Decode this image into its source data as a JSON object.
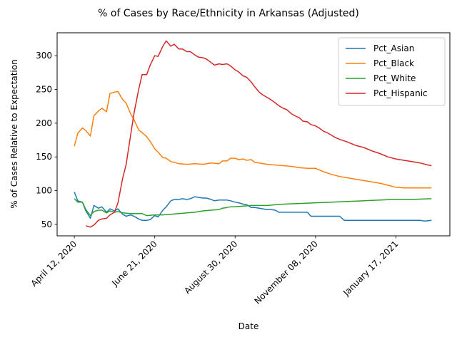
{
  "chart_data": {
    "type": "line",
    "title": "% of Cases by Race/Ethnicity in Arkansas (Adjusted)",
    "xlabel": "Date",
    "ylabel": "% of Cases Relative to Expectation",
    "ylim": [
      33,
      334
    ],
    "xlim": [
      "2020-03-28",
      "2021-03-05"
    ],
    "y_ticks": [
      50,
      100,
      150,
      200,
      250,
      300
    ],
    "x_ticks": [
      {
        "date": "2020-04-12",
        "label": "April 12, 2020"
      },
      {
        "date": "2020-06-21",
        "label": "June 21, 2020"
      },
      {
        "date": "2020-08-30",
        "label": "August 30, 2020"
      },
      {
        "date": "2020-11-08",
        "label": "November 08, 2020"
      },
      {
        "date": "2021-01-17",
        "label": "January 17, 2021"
      }
    ],
    "legend_position": "top-right",
    "grid": false,
    "series": [
      {
        "name": "Pct_Asian",
        "color": "#1f77b4",
        "points": [
          [
            "2020-04-12",
            98
          ],
          [
            "2020-04-15",
            85
          ],
          [
            "2020-04-19",
            83
          ],
          [
            "2020-04-22",
            70
          ],
          [
            "2020-04-26",
            59
          ],
          [
            "2020-04-29",
            78
          ],
          [
            "2020-05-03",
            74
          ],
          [
            "2020-05-06",
            76
          ],
          [
            "2020-05-10",
            68
          ],
          [
            "2020-05-13",
            73
          ],
          [
            "2020-05-17",
            70
          ],
          [
            "2020-05-20",
            73
          ],
          [
            "2020-05-24",
            65
          ],
          [
            "2020-05-27",
            62
          ],
          [
            "2020-05-31",
            64
          ],
          [
            "2020-06-03",
            62
          ],
          [
            "2020-06-07",
            58
          ],
          [
            "2020-06-10",
            56
          ],
          [
            "2020-06-14",
            56
          ],
          [
            "2020-06-17",
            57
          ],
          [
            "2020-06-21",
            63
          ],
          [
            "2020-06-24",
            61
          ],
          [
            "2020-06-28",
            71
          ],
          [
            "2020-07-01",
            76
          ],
          [
            "2020-07-05",
            85
          ],
          [
            "2020-07-08",
            87
          ],
          [
            "2020-07-12",
            87
          ],
          [
            "2020-07-15",
            88
          ],
          [
            "2020-07-19",
            87
          ],
          [
            "2020-07-22",
            88
          ],
          [
            "2020-07-26",
            91
          ],
          [
            "2020-07-29",
            90
          ],
          [
            "2020-08-02",
            89
          ],
          [
            "2020-08-05",
            89
          ],
          [
            "2020-08-09",
            87
          ],
          [
            "2020-08-12",
            85
          ],
          [
            "2020-08-16",
            86
          ],
          [
            "2020-08-19",
            86
          ],
          [
            "2020-08-23",
            86
          ],
          [
            "2020-08-26",
            85
          ],
          [
            "2020-08-30",
            83
          ],
          [
            "2020-09-02",
            82
          ],
          [
            "2020-09-06",
            80
          ],
          [
            "2020-09-09",
            79
          ],
          [
            "2020-09-13",
            75
          ],
          [
            "2020-09-16",
            75
          ],
          [
            "2020-09-20",
            74
          ],
          [
            "2020-09-23",
            73
          ],
          [
            "2020-09-27",
            72
          ],
          [
            "2020-09-30",
            72
          ],
          [
            "2020-10-04",
            71
          ],
          [
            "2020-10-07",
            68
          ],
          [
            "2020-10-11",
            68
          ],
          [
            "2020-10-18",
            68
          ],
          [
            "2020-10-25",
            68
          ],
          [
            "2020-11-01",
            68
          ],
          [
            "2020-11-04",
            62
          ],
          [
            "2020-11-08",
            62
          ],
          [
            "2020-11-15",
            62
          ],
          [
            "2020-11-22",
            62
          ],
          [
            "2020-11-29",
            62
          ],
          [
            "2020-12-03",
            56
          ],
          [
            "2020-12-10",
            56
          ],
          [
            "2020-12-20",
            56
          ],
          [
            "2020-12-31",
            56
          ],
          [
            "2021-01-10",
            56
          ],
          [
            "2021-01-20",
            56
          ],
          [
            "2021-01-31",
            56
          ],
          [
            "2021-02-07",
            56
          ],
          [
            "2021-02-11",
            55
          ],
          [
            "2021-02-17",
            56
          ]
        ]
      },
      {
        "name": "Pct_Black",
        "color": "#ff7f0e",
        "points": [
          [
            "2020-04-12",
            166
          ],
          [
            "2020-04-15",
            185
          ],
          [
            "2020-04-19",
            193
          ],
          [
            "2020-04-22",
            189
          ],
          [
            "2020-04-26",
            181
          ],
          [
            "2020-04-29",
            211
          ],
          [
            "2020-05-03",
            218
          ],
          [
            "2020-05-06",
            222
          ],
          [
            "2020-05-10",
            217
          ],
          [
            "2020-05-13",
            244
          ],
          [
            "2020-05-17",
            246
          ],
          [
            "2020-05-20",
            247
          ],
          [
            "2020-05-24",
            235
          ],
          [
            "2020-05-27",
            230
          ],
          [
            "2020-05-31",
            214
          ],
          [
            "2020-06-03",
            205
          ],
          [
            "2020-06-07",
            190
          ],
          [
            "2020-06-10",
            186
          ],
          [
            "2020-06-14",
            180
          ],
          [
            "2020-06-17",
            173
          ],
          [
            "2020-06-21",
            162
          ],
          [
            "2020-06-24",
            157
          ],
          [
            "2020-06-28",
            149
          ],
          [
            "2020-07-01",
            148
          ],
          [
            "2020-07-05",
            143
          ],
          [
            "2020-07-08",
            142
          ],
          [
            "2020-07-12",
            140
          ],
          [
            "2020-07-19",
            139
          ],
          [
            "2020-07-26",
            140
          ],
          [
            "2020-08-02",
            139
          ],
          [
            "2020-08-09",
            141
          ],
          [
            "2020-08-16",
            140
          ],
          [
            "2020-08-19",
            144
          ],
          [
            "2020-08-23",
            144
          ],
          [
            "2020-08-26",
            148
          ],
          [
            "2020-08-30",
            148
          ],
          [
            "2020-09-02",
            146
          ],
          [
            "2020-09-06",
            147
          ],
          [
            "2020-09-09",
            145
          ],
          [
            "2020-09-13",
            146
          ],
          [
            "2020-09-16",
            142
          ],
          [
            "2020-09-20",
            141
          ],
          [
            "2020-09-27",
            139
          ],
          [
            "2020-10-04",
            138
          ],
          [
            "2020-10-11",
            137
          ],
          [
            "2020-10-18",
            136
          ],
          [
            "2020-10-25",
            134
          ],
          [
            "2020-11-01",
            133
          ],
          [
            "2020-11-08",
            133
          ],
          [
            "2020-11-15",
            128
          ],
          [
            "2020-11-22",
            124
          ],
          [
            "2020-11-29",
            121
          ],
          [
            "2020-12-06",
            119
          ],
          [
            "2020-12-13",
            117
          ],
          [
            "2020-12-20",
            115
          ],
          [
            "2020-12-27",
            113
          ],
          [
            "2021-01-03",
            111
          ],
          [
            "2021-01-10",
            108
          ],
          [
            "2021-01-17",
            105
          ],
          [
            "2021-01-24",
            104
          ],
          [
            "2021-02-07",
            104
          ],
          [
            "2021-02-17",
            104
          ]
        ]
      },
      {
        "name": "Pct_White",
        "color": "#2ca02c",
        "points": [
          [
            "2020-04-12",
            88
          ],
          [
            "2020-04-15",
            83
          ],
          [
            "2020-04-19",
            83
          ],
          [
            "2020-04-22",
            72
          ],
          [
            "2020-04-26",
            63
          ],
          [
            "2020-04-29",
            69
          ],
          [
            "2020-05-03",
            71
          ],
          [
            "2020-05-06",
            71
          ],
          [
            "2020-05-10",
            67
          ],
          [
            "2020-05-13",
            70
          ],
          [
            "2020-05-17",
            68
          ],
          [
            "2020-05-20",
            69
          ],
          [
            "2020-05-24",
            67
          ],
          [
            "2020-05-31",
            66
          ],
          [
            "2020-06-07",
            66
          ],
          [
            "2020-06-10",
            66
          ],
          [
            "2020-06-14",
            63
          ],
          [
            "2020-06-21",
            64
          ],
          [
            "2020-06-28",
            64
          ],
          [
            "2020-07-05",
            65
          ],
          [
            "2020-07-12",
            66
          ],
          [
            "2020-07-19",
            67
          ],
          [
            "2020-07-26",
            68
          ],
          [
            "2020-08-02",
            70
          ],
          [
            "2020-08-09",
            71
          ],
          [
            "2020-08-16",
            72
          ],
          [
            "2020-08-19",
            74
          ],
          [
            "2020-08-23",
            75
          ],
          [
            "2020-08-26",
            76
          ],
          [
            "2020-08-30",
            76
          ],
          [
            "2020-09-06",
            77
          ],
          [
            "2020-09-13",
            78
          ],
          [
            "2020-09-27",
            78
          ],
          [
            "2020-10-04",
            79
          ],
          [
            "2020-10-11",
            80
          ],
          [
            "2020-10-25",
            81
          ],
          [
            "2020-11-08",
            82
          ],
          [
            "2020-11-22",
            83
          ],
          [
            "2020-12-06",
            84
          ],
          [
            "2020-12-20",
            85
          ],
          [
            "2021-01-03",
            86
          ],
          [
            "2021-01-17",
            87
          ],
          [
            "2021-01-31",
            87
          ],
          [
            "2021-02-17",
            88
          ]
        ]
      },
      {
        "name": "Pct_Hispanic",
        "color": "#d62728",
        "points": [
          [
            "2020-04-22",
            48
          ],
          [
            "2020-04-26",
            46
          ],
          [
            "2020-04-29",
            49
          ],
          [
            "2020-05-03",
            56
          ],
          [
            "2020-05-06",
            58
          ],
          [
            "2020-05-10",
            59
          ],
          [
            "2020-05-13",
            64
          ],
          [
            "2020-05-17",
            68
          ],
          [
            "2020-05-20",
            82
          ],
          [
            "2020-05-24",
            118
          ],
          [
            "2020-05-27",
            138
          ],
          [
            "2020-05-31",
            182
          ],
          [
            "2020-06-03",
            215
          ],
          [
            "2020-06-07",
            250
          ],
          [
            "2020-06-10",
            272
          ],
          [
            "2020-06-14",
            272
          ],
          [
            "2020-06-17",
            286
          ],
          [
            "2020-06-21",
            300
          ],
          [
            "2020-06-24",
            299
          ],
          [
            "2020-06-28",
            314
          ],
          [
            "2020-07-01",
            322
          ],
          [
            "2020-07-05",
            314
          ],
          [
            "2020-07-08",
            317
          ],
          [
            "2020-07-12",
            310
          ],
          [
            "2020-07-15",
            310
          ],
          [
            "2020-07-19",
            306
          ],
          [
            "2020-07-22",
            306
          ],
          [
            "2020-07-26",
            301
          ],
          [
            "2020-07-29",
            298
          ],
          [
            "2020-08-02",
            297
          ],
          [
            "2020-08-05",
            295
          ],
          [
            "2020-08-09",
            290
          ],
          [
            "2020-08-12",
            286
          ],
          [
            "2020-08-16",
            288
          ],
          [
            "2020-08-19",
            287
          ],
          [
            "2020-08-23",
            288
          ],
          [
            "2020-08-26",
            285
          ],
          [
            "2020-08-30",
            279
          ],
          [
            "2020-09-02",
            276
          ],
          [
            "2020-09-06",
            270
          ],
          [
            "2020-09-09",
            268
          ],
          [
            "2020-09-13",
            261
          ],
          [
            "2020-09-16",
            254
          ],
          [
            "2020-09-20",
            246
          ],
          [
            "2020-09-23",
            242
          ],
          [
            "2020-09-27",
            238
          ],
          [
            "2020-09-30",
            235
          ],
          [
            "2020-10-04",
            230
          ],
          [
            "2020-10-07",
            226
          ],
          [
            "2020-10-11",
            222
          ],
          [
            "2020-10-14",
            220
          ],
          [
            "2020-10-18",
            214
          ],
          [
            "2020-10-21",
            211
          ],
          [
            "2020-10-25",
            208
          ],
          [
            "2020-10-28",
            203
          ],
          [
            "2020-11-01",
            202
          ],
          [
            "2020-11-04",
            198
          ],
          [
            "2020-11-08",
            196
          ],
          [
            "2020-11-11",
            193
          ],
          [
            "2020-11-15",
            188
          ],
          [
            "2020-11-18",
            186
          ],
          [
            "2020-11-22",
            182
          ],
          [
            "2020-11-25",
            179
          ],
          [
            "2020-11-29",
            176
          ],
          [
            "2020-12-06",
            172
          ],
          [
            "2020-12-13",
            167
          ],
          [
            "2020-12-20",
            164
          ],
          [
            "2020-12-27",
            159
          ],
          [
            "2021-01-03",
            155
          ],
          [
            "2021-01-10",
            150
          ],
          [
            "2021-01-17",
            147
          ],
          [
            "2021-01-24",
            145
          ],
          [
            "2021-01-31",
            143
          ],
          [
            "2021-02-07",
            141
          ],
          [
            "2021-02-14",
            138
          ],
          [
            "2021-02-17",
            137
          ]
        ]
      }
    ]
  }
}
